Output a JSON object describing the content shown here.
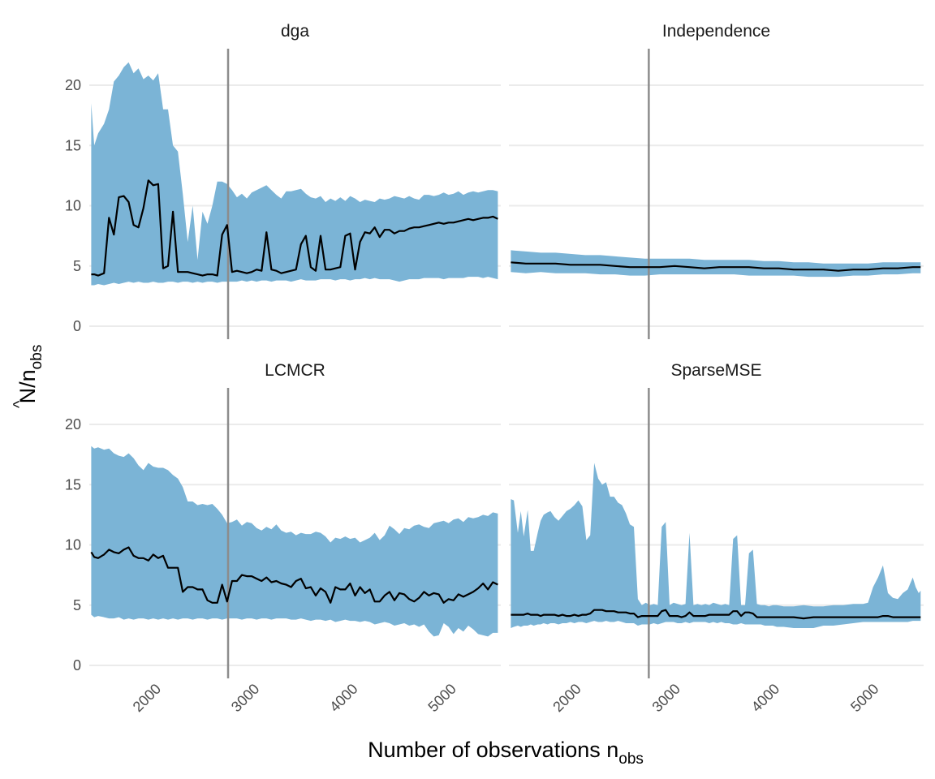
{
  "chart_data": {
    "type": "area",
    "xlabel_main": "Number of observations n",
    "xlabel_sub": "obs",
    "ylabel_main": "N",
    "ylabel_hat": "^",
    "ylabel_mid": "/n",
    "ylabel_sub": "obs",
    "xlim": [
      1330,
      5510
    ],
    "ylim": [
      0,
      23
    ],
    "x_ticks": [
      2000,
      3000,
      4000,
      5000
    ],
    "y_ticks": [
      0,
      5,
      10,
      15,
      20
    ],
    "reference_line_x": 2740,
    "colors": {
      "band": "#7bb4d6",
      "line": "#000000",
      "reference": "#8c8c8c",
      "grid": "#ebebeb"
    },
    "panels": [
      {
        "name": "dga",
        "x": [
          1350,
          1380,
          1420,
          1480,
          1530,
          1580,
          1630,
          1680,
          1730,
          1780,
          1830,
          1880,
          1930,
          1980,
          2030,
          2080,
          2130,
          2180,
          2230,
          2280,
          2330,
          2380,
          2430,
          2480,
          2530,
          2580,
          2630,
          2680,
          2730,
          2780,
          2830,
          2880,
          2930,
          2980,
          3030,
          3080,
          3130,
          3180,
          3230,
          3280,
          3330,
          3380,
          3430,
          3480,
          3530,
          3580,
          3630,
          3680,
          3730,
          3780,
          3830,
          3880,
          3930,
          3980,
          4030,
          4080,
          4130,
          4180,
          4230,
          4280,
          4330,
          4380,
          4430,
          4480,
          4530,
          4580,
          4630,
          4680,
          4730,
          4780,
          4830,
          4880,
          4930,
          4980,
          5030,
          5080,
          5130,
          5180,
          5230,
          5280,
          5330,
          5380,
          5430,
          5480
        ],
        "lower": [
          3.4,
          3.4,
          3.5,
          3.4,
          3.5,
          3.6,
          3.5,
          3.6,
          3.7,
          3.6,
          3.7,
          3.6,
          3.6,
          3.7,
          3.6,
          3.6,
          3.7,
          3.7,
          3.6,
          3.7,
          3.7,
          3.6,
          3.7,
          3.6,
          3.7,
          3.7,
          3.6,
          3.7,
          3.7,
          3.7,
          3.7,
          3.8,
          3.7,
          3.8,
          3.7,
          3.8,
          3.8,
          3.7,
          3.8,
          3.8,
          3.8,
          3.7,
          3.8,
          3.9,
          3.8,
          3.8,
          3.8,
          3.9,
          3.9,
          3.9,
          3.8,
          3.9,
          3.9,
          3.8,
          3.9,
          3.9,
          4.0,
          3.9,
          4.0,
          3.9,
          3.9,
          3.9,
          3.8,
          3.7,
          3.8,
          3.9,
          3.9,
          3.9,
          4.0,
          4.0,
          4.0,
          4.0,
          3.9,
          4.0,
          4.0,
          4.0,
          4.0,
          4.1,
          4.1,
          4.1,
          4.0,
          4.1,
          4.0,
          3.9
        ],
        "upper": [
          18.5,
          15.0,
          16.0,
          16.8,
          18.0,
          20.3,
          20.8,
          21.5,
          21.9,
          21.0,
          21.4,
          20.5,
          20.8,
          20.4,
          21.0,
          18.0,
          18.0,
          15.0,
          14.5,
          11.0,
          7.0,
          10.0,
          5.5,
          9.5,
          8.5,
          10.0,
          12.0,
          12.0,
          11.8,
          11.3,
          10.7,
          11.0,
          10.6,
          11.1,
          11.3,
          11.5,
          11.7,
          11.3,
          10.9,
          10.6,
          11.2,
          11.2,
          11.3,
          11.4,
          11.0,
          10.7,
          10.6,
          10.8,
          10.3,
          10.6,
          10.4,
          10.7,
          10.4,
          10.8,
          10.6,
          10.3,
          10.5,
          10.4,
          10.3,
          10.6,
          10.5,
          10.6,
          10.8,
          10.7,
          10.6,
          10.8,
          10.6,
          10.5,
          10.9,
          10.9,
          10.8,
          10.9,
          11.1,
          10.9,
          11.0,
          11.2,
          10.9,
          11.1,
          11.2,
          11.1,
          11.2,
          11.3,
          11.3,
          11.2
        ],
        "estimate": [
          4.3,
          4.3,
          4.2,
          4.4,
          9.0,
          7.6,
          10.7,
          10.8,
          10.3,
          8.4,
          8.2,
          9.8,
          12.1,
          11.7,
          11.8,
          4.8,
          5.0,
          9.5,
          4.5,
          4.5,
          4.5,
          4.4,
          4.3,
          4.2,
          4.3,
          4.3,
          4.2,
          7.6,
          8.4,
          4.5,
          4.6,
          4.5,
          4.4,
          4.5,
          4.7,
          4.6,
          7.8,
          4.7,
          4.6,
          4.4,
          4.5,
          4.6,
          4.7,
          6.8,
          7.5,
          4.9,
          4.6,
          7.5,
          4.7,
          4.7,
          4.8,
          4.9,
          7.5,
          7.7,
          4.7,
          7.0,
          7.8,
          7.7,
          8.2,
          7.4,
          8.0,
          8.0,
          7.7,
          7.9,
          7.9,
          8.1,
          8.2,
          8.2,
          8.3,
          8.4,
          8.5,
          8.6,
          8.5,
          8.6,
          8.6,
          8.7,
          8.8,
          8.9,
          8.8,
          8.9,
          9.0,
          9.0,
          9.1,
          8.9
        ]
      },
      {
        "name": "Independence",
        "x": [
          1350,
          1500,
          1650,
          1800,
          1950,
          2100,
          2250,
          2400,
          2550,
          2700,
          2850,
          3000,
          3150,
          3300,
          3450,
          3600,
          3750,
          3900,
          4050,
          4200,
          4350,
          4500,
          4650,
          4800,
          4950,
          5100,
          5250,
          5400,
          5480
        ],
        "lower": [
          4.5,
          4.4,
          4.5,
          4.4,
          4.4,
          4.4,
          4.3,
          4.3,
          4.2,
          4.2,
          4.3,
          4.3,
          4.3,
          4.3,
          4.3,
          4.3,
          4.2,
          4.2,
          4.2,
          4.2,
          4.1,
          4.1,
          4.1,
          4.2,
          4.2,
          4.3,
          4.3,
          4.4,
          4.4
        ],
        "upper": [
          6.3,
          6.2,
          6.1,
          6.1,
          6.0,
          5.9,
          5.9,
          5.8,
          5.7,
          5.6,
          5.6,
          5.6,
          5.6,
          5.5,
          5.5,
          5.5,
          5.5,
          5.4,
          5.4,
          5.3,
          5.3,
          5.2,
          5.2,
          5.2,
          5.2,
          5.3,
          5.3,
          5.3,
          5.3
        ],
        "estimate": [
          5.3,
          5.2,
          5.2,
          5.2,
          5.1,
          5.1,
          5.1,
          5.0,
          4.9,
          4.9,
          4.9,
          5.0,
          4.9,
          4.8,
          4.9,
          4.9,
          4.9,
          4.8,
          4.8,
          4.7,
          4.7,
          4.7,
          4.6,
          4.7,
          4.7,
          4.8,
          4.8,
          4.9,
          4.9
        ]
      },
      {
        "name": "LCMCR",
        "x": [
          1350,
          1380,
          1420,
          1480,
          1530,
          1580,
          1630,
          1680,
          1730,
          1780,
          1830,
          1880,
          1930,
          1980,
          2030,
          2080,
          2130,
          2180,
          2230,
          2280,
          2330,
          2380,
          2430,
          2480,
          2530,
          2580,
          2630,
          2680,
          2730,
          2780,
          2830,
          2880,
          2930,
          2980,
          3030,
          3080,
          3130,
          3180,
          3230,
          3280,
          3330,
          3380,
          3430,
          3480,
          3530,
          3580,
          3630,
          3680,
          3730,
          3780,
          3830,
          3880,
          3930,
          3980,
          4030,
          4080,
          4130,
          4180,
          4230,
          4280,
          4330,
          4380,
          4430,
          4480,
          4530,
          4580,
          4630,
          4680,
          4730,
          4780,
          4830,
          4880,
          4930,
          4980,
          5030,
          5080,
          5130,
          5180,
          5230,
          5280,
          5330,
          5380,
          5430,
          5480
        ],
        "lower": [
          4.2,
          4.0,
          4.1,
          4.0,
          3.9,
          3.9,
          4.0,
          3.8,
          3.9,
          3.8,
          3.9,
          3.9,
          3.8,
          3.9,
          3.8,
          3.9,
          3.8,
          3.9,
          3.8,
          3.9,
          3.9,
          3.8,
          3.9,
          3.9,
          3.8,
          3.9,
          3.9,
          3.8,
          3.9,
          3.9,
          3.9,
          3.8,
          3.9,
          3.9,
          3.8,
          3.9,
          3.9,
          3.8,
          3.9,
          3.9,
          3.9,
          3.8,
          3.8,
          3.9,
          3.8,
          3.7,
          3.8,
          3.8,
          3.7,
          3.8,
          3.6,
          3.7,
          3.8,
          3.7,
          3.7,
          3.6,
          3.7,
          3.6,
          3.4,
          3.5,
          3.6,
          3.5,
          3.3,
          3.4,
          3.5,
          3.3,
          3.4,
          3.2,
          3.4,
          2.8,
          2.4,
          2.5,
          3.5,
          3.2,
          2.6,
          3.1,
          2.8,
          3.3,
          3.0,
          2.6,
          2.5,
          2.4,
          2.7,
          2.7
        ],
        "upper": [
          18.2,
          18.0,
          18.1,
          17.9,
          18.0,
          17.6,
          17.4,
          17.3,
          17.6,
          17.2,
          16.6,
          16.2,
          16.8,
          16.5,
          16.4,
          16.4,
          16.2,
          15.8,
          15.5,
          14.8,
          13.6,
          13.6,
          13.3,
          13.4,
          13.3,
          13.4,
          13.0,
          12.5,
          11.8,
          11.9,
          12.1,
          11.6,
          11.9,
          11.8,
          11.4,
          11.2,
          11.5,
          11.3,
          11.7,
          11.2,
          11.0,
          11.1,
          10.8,
          11.0,
          10.9,
          10.9,
          11.1,
          11.0,
          10.7,
          10.2,
          10.6,
          10.5,
          10.7,
          10.5,
          10.6,
          10.2,
          10.4,
          10.6,
          11.0,
          10.4,
          10.8,
          11.6,
          11.3,
          10.9,
          11.4,
          11.3,
          11.6,
          11.7,
          11.5,
          11.4,
          11.8,
          11.9,
          12.0,
          11.8,
          12.1,
          12.2,
          11.9,
          12.3,
          12.2,
          12.3,
          12.5,
          12.4,
          12.7,
          12.6
        ],
        "estimate": [
          9.4,
          9.0,
          8.9,
          9.2,
          9.6,
          9.4,
          9.3,
          9.6,
          9.8,
          9.1,
          8.9,
          8.9,
          8.7,
          9.2,
          8.9,
          9.1,
          8.1,
          8.1,
          8.1,
          6.1,
          6.5,
          6.5,
          6.3,
          6.3,
          5.4,
          5.2,
          5.2,
          6.7,
          5.3,
          7.0,
          7.0,
          7.5,
          7.4,
          7.4,
          7.2,
          7.0,
          7.3,
          6.9,
          7.0,
          6.8,
          6.7,
          6.5,
          7.0,
          7.2,
          6.4,
          6.5,
          5.8,
          6.4,
          6.1,
          5.2,
          6.5,
          6.3,
          6.3,
          6.8,
          5.8,
          6.5,
          6.0,
          6.3,
          5.3,
          5.3,
          5.8,
          6.1,
          5.4,
          6.0,
          5.9,
          5.5,
          5.3,
          5.6,
          6.1,
          5.8,
          6.0,
          5.9,
          5.2,
          5.5,
          5.4,
          5.9,
          5.7,
          5.9,
          6.1,
          6.4,
          6.8,
          6.3,
          6.9,
          6.7
        ],
        "estimate_tail": [
          7.0,
          6.7,
          5.3,
          6.7,
          6.4,
          7.0,
          6.9,
          6.4,
          5.2,
          6.2,
          5.9,
          6.9,
          5.4,
          6.7,
          6.9,
          6.5,
          5.3,
          5.2,
          5.6,
          5.6
        ]
      },
      {
        "name": "SparseMSE",
        "x": [
          1350,
          1380,
          1420,
          1450,
          1480,
          1520,
          1550,
          1580,
          1620,
          1650,
          1680,
          1720,
          1750,
          1790,
          1830,
          1870,
          1910,
          1950,
          1990,
          2030,
          2070,
          2110,
          2150,
          2190,
          2230,
          2270,
          2310,
          2350,
          2390,
          2430,
          2470,
          2510,
          2550,
          2590,
          2630,
          2670,
          2710,
          2750,
          2790,
          2830,
          2870,
          2910,
          2950,
          2990,
          3030,
          3070,
          3110,
          3150,
          3190,
          3230,
          3270,
          3310,
          3350,
          3390,
          3430,
          3470,
          3510,
          3550,
          3590,
          3630,
          3670,
          3710,
          3750,
          3790,
          3830,
          3870,
          3910,
          3950,
          3990,
          4030,
          4100,
          4200,
          4300,
          4400,
          4500,
          4600,
          4700,
          4800,
          4900,
          4950,
          5000,
          5050,
          5100,
          5150,
          5200,
          5250,
          5300,
          5350,
          5400,
          5430,
          5460,
          5480
        ],
        "lower": [
          3.1,
          3.2,
          3.3,
          3.2,
          3.3,
          3.3,
          3.4,
          3.3,
          3.4,
          3.4,
          3.5,
          3.4,
          3.5,
          3.5,
          3.4,
          3.5,
          3.5,
          3.6,
          3.5,
          3.6,
          3.6,
          3.5,
          3.6,
          3.7,
          3.6,
          3.6,
          3.7,
          3.6,
          3.6,
          3.7,
          3.6,
          3.5,
          3.5,
          3.5,
          3.3,
          3.4,
          3.4,
          3.4,
          3.5,
          3.4,
          3.5,
          3.6,
          3.6,
          3.6,
          3.5,
          3.5,
          3.6,
          3.5,
          3.6,
          3.6,
          3.6,
          3.6,
          3.5,
          3.6,
          3.5,
          3.6,
          3.5,
          3.5,
          3.4,
          3.4,
          3.5,
          3.4,
          3.4,
          3.4,
          3.4,
          3.4,
          3.3,
          3.3,
          3.3,
          3.2,
          3.2,
          3.1,
          3.1,
          3.1,
          3.3,
          3.3,
          3.4,
          3.5,
          3.6,
          3.6,
          3.6,
          3.6,
          3.6,
          3.6,
          3.6,
          3.6,
          3.6,
          3.6,
          3.7,
          3.7,
          3.7,
          3.7
        ],
        "upper": [
          13.8,
          13.7,
          11.0,
          12.8,
          10.7,
          12.9,
          9.5,
          9.5,
          11.0,
          12.0,
          12.5,
          12.7,
          12.8,
          12.3,
          12.0,
          12.4,
          12.8,
          13.0,
          13.3,
          13.7,
          13.2,
          10.4,
          10.8,
          16.8,
          15.5,
          15.0,
          15.2,
          14.0,
          14.0,
          13.5,
          13.3,
          12.6,
          11.7,
          11.5,
          5.5,
          5.0,
          5.2,
          5.0,
          5.1,
          5.0,
          11.5,
          11.9,
          5.0,
          5.2,
          5.1,
          5.0,
          5.1,
          11.0,
          5.0,
          5.1,
          5.0,
          5.1,
          5.0,
          5.2,
          5.1,
          5.0,
          5.1,
          5.0,
          10.5,
          10.8,
          5.0,
          5.0,
          9.3,
          9.6,
          5.1,
          5.0,
          5.0,
          4.9,
          5.0,
          5.0,
          4.9,
          4.9,
          5.0,
          4.9,
          4.9,
          5.0,
          5.0,
          5.1,
          5.1,
          5.2,
          6.5,
          7.3,
          8.3,
          6.0,
          5.6,
          5.5,
          6.0,
          6.3,
          7.3,
          6.5,
          6.0,
          6.2
        ],
        "estimate": [
          4.2,
          4.2,
          4.2,
          4.2,
          4.2,
          4.3,
          4.2,
          4.2,
          4.2,
          4.1,
          4.2,
          4.2,
          4.2,
          4.2,
          4.1,
          4.2,
          4.1,
          4.1,
          4.2,
          4.1,
          4.2,
          4.2,
          4.3,
          4.6,
          4.6,
          4.6,
          4.5,
          4.5,
          4.5,
          4.4,
          4.4,
          4.4,
          4.3,
          4.3,
          4.0,
          4.1,
          4.1,
          4.1,
          4.1,
          4.1,
          4.5,
          4.6,
          4.1,
          4.1,
          4.1,
          4.0,
          4.1,
          4.4,
          4.1,
          4.1,
          4.1,
          4.1,
          4.2,
          4.2,
          4.2,
          4.2,
          4.2,
          4.2,
          4.5,
          4.5,
          4.1,
          4.4,
          4.4,
          4.3,
          4.0,
          4.0,
          4.0,
          4.0,
          4.0,
          4.0,
          4.0,
          4.0,
          3.9,
          4.0,
          4.0,
          4.0,
          4.0,
          4.0,
          4.0,
          4.0,
          4.0,
          4.0,
          4.1,
          4.1,
          4.0,
          4.0,
          4.0,
          4.0,
          4.0,
          4.0,
          4.0,
          4.0
        ]
      }
    ]
  }
}
